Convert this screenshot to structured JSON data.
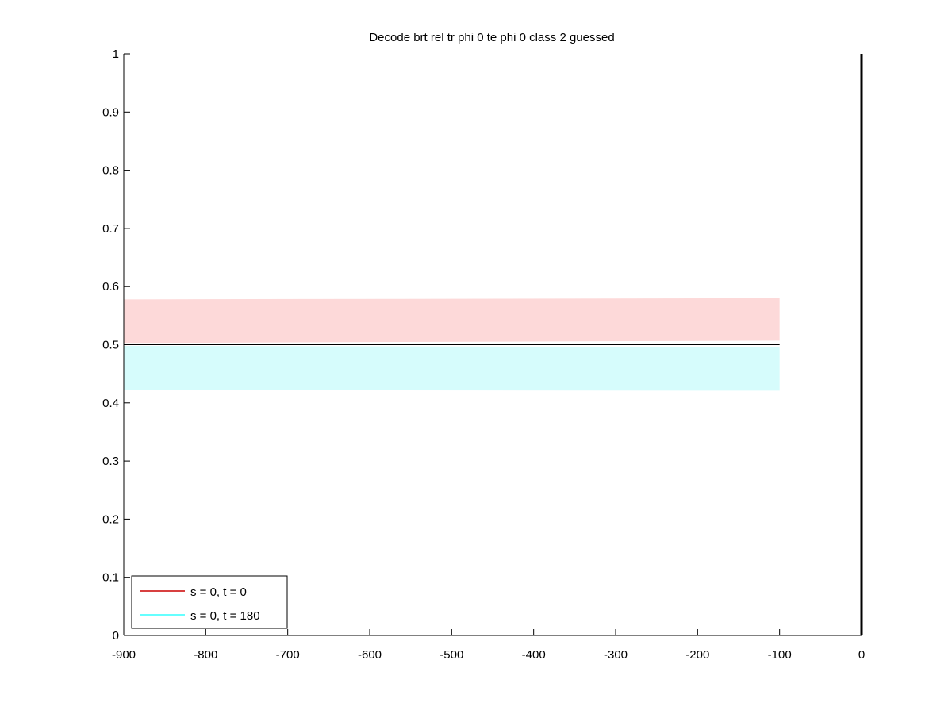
{
  "chart_data": {
    "type": "area",
    "title": "Decode brt rel tr phi 0 te phi 0  class 2 guessed",
    "xlabel": "",
    "ylabel": "",
    "xlim": [
      -900,
      0
    ],
    "ylim": [
      0,
      1
    ],
    "xticks": [
      -900,
      -800,
      -700,
      -600,
      -500,
      -400,
      -300,
      -200,
      -100,
      0
    ],
    "yticks": [
      0,
      0.1,
      0.2,
      0.3,
      0.4,
      0.5,
      0.6,
      0.7,
      0.8,
      0.9,
      1
    ],
    "tick_labels_x": [
      "-900",
      "-800",
      "-700",
      "-600",
      "-500",
      "-400",
      "-300",
      "-200",
      "-100",
      "0"
    ],
    "tick_labels_y": [
      "0",
      "0.1",
      "0.2",
      "0.3",
      "0.4",
      "0.5",
      "0.6",
      "0.7",
      "0.8",
      "0.9",
      "1"
    ],
    "grid": false,
    "legend_position": "bottom-left",
    "reference_line": {
      "y": 0.5,
      "x_range": [
        -900,
        -100
      ],
      "color": "#000000"
    },
    "event_line": {
      "x": 0,
      "color": "#000000"
    },
    "series": [
      {
        "name": "s = 0, t = 0",
        "color": "#cc0000",
        "band_color": "#fdd9d9",
        "x": [
          -900,
          -100
        ],
        "lower": [
          0.503,
          0.507
        ],
        "upper": [
          0.578,
          0.58
        ]
      },
      {
        "name": "s = 0, t = 180",
        "color": "#33ffff",
        "band_color": "#d6fcfc",
        "x": [
          -900,
          -100
        ],
        "lower": [
          0.422,
          0.421
        ],
        "upper": [
          0.498,
          0.496
        ]
      }
    ]
  }
}
